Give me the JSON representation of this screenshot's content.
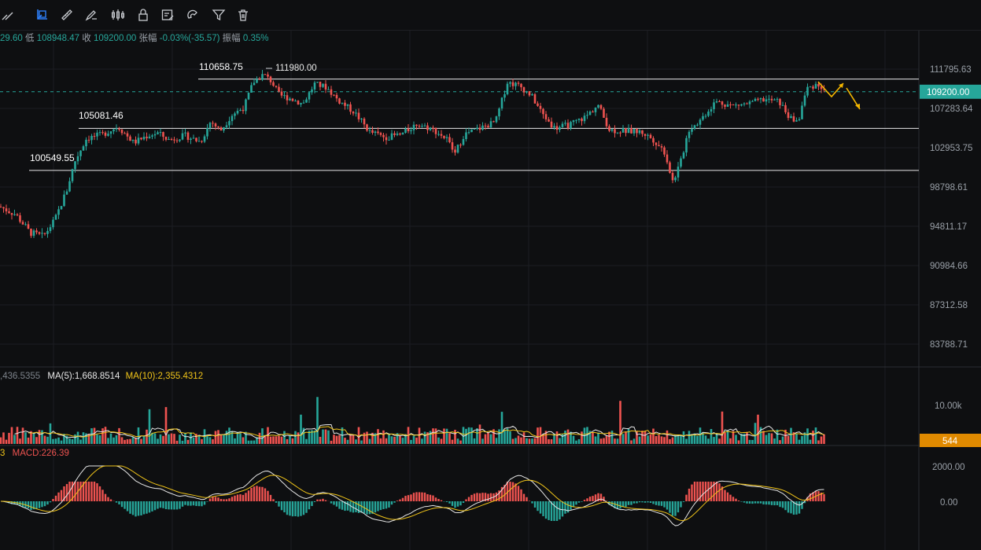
{
  "toolbar": {
    "tools": [
      {
        "icon": "crosshair-icon"
      },
      {
        "icon": "select-rect-icon"
      },
      {
        "icon": "ruler-icon"
      },
      {
        "icon": "brush-icon"
      },
      {
        "icon": "candles-icon"
      },
      {
        "icon": "lock-icon"
      },
      {
        "icon": "note-icon"
      },
      {
        "icon": "magnet-icon"
      },
      {
        "icon": "filter-icon"
      },
      {
        "icon": "trash-icon"
      }
    ],
    "active_color": "#2d7ff9"
  },
  "ohlc_bar": {
    "high_value": "29.60",
    "low_label": "低",
    "low_value": "108948.47",
    "close_label": "收",
    "close_value": "109200.00",
    "change_label": "张幅",
    "change_value": "-0.03%(-35.57)",
    "amplitude_label": "振幅",
    "amplitude_value": "0.35%"
  },
  "price_axis": {
    "ticks": [
      "111795.63",
      "107283.64",
      "102953.75",
      "98798.61",
      "94811.17",
      "90984.66",
      "87312.58",
      "83788.71"
    ],
    "current_price": "109200.00",
    "current_price_color": "#26a69a"
  },
  "annotations": {
    "level_high_label": "110658.75",
    "peak_label": "111980.00",
    "level_mid_label": "105081.46",
    "level_low_label": "100549.55"
  },
  "volume_panel": {
    "prefix": ",436.5355",
    "ma5": "MA(5):1,668.8514",
    "ma10": "MA(10):2,355.4312",
    "axis_tick": "10.00k",
    "current_volume": "544",
    "current_volume_color": "#e08a00"
  },
  "macd_panel": {
    "prefix": "3",
    "macd": "MACD:226.39",
    "axis_ticks": [
      "2000.00",
      "0.00"
    ]
  },
  "colors": {
    "up": "#26a69a",
    "down": "#ef5350",
    "ma5": "#e8e8e8",
    "ma10": "#f0c419",
    "projection": "#f5b700"
  },
  "chart_data": {
    "type": "candlestick",
    "price_levels": [
      110658.75,
      105081.46,
      100549.55
    ],
    "peak": 111980.0,
    "last_close": 109200.0,
    "y_ticks": [
      111795.63,
      107283.64,
      102953.75,
      98798.61,
      94811.17,
      90984.66,
      87312.58,
      83788.71
    ],
    "close_path": [
      [
        0,
        96800
      ],
      [
        20,
        96000
      ],
      [
        38,
        94200
      ],
      [
        55,
        93800
      ],
      [
        70,
        95500
      ],
      [
        85,
        98500
      ],
      [
        95,
        101500
      ],
      [
        110,
        104000
      ],
      [
        130,
        104400
      ],
      [
        150,
        105300
      ],
      [
        170,
        103500
      ],
      [
        185,
        104200
      ],
      [
        200,
        104600
      ],
      [
        215,
        103800
      ],
      [
        235,
        104300
      ],
      [
        255,
        103600
      ],
      [
        268,
        105900
      ],
      [
        280,
        104800
      ],
      [
        295,
        106600
      ],
      [
        310,
        107400
      ],
      [
        322,
        110300
      ],
      [
        335,
        111200
      ],
      [
        345,
        110400
      ],
      [
        355,
        108800
      ],
      [
        370,
        108400
      ],
      [
        385,
        107800
      ],
      [
        400,
        110100
      ],
      [
        415,
        109700
      ],
      [
        430,
        108200
      ],
      [
        450,
        106900
      ],
      [
        470,
        104700
      ],
      [
        490,
        104100
      ],
      [
        510,
        104400
      ],
      [
        530,
        105600
      ],
      [
        550,
        105000
      ],
      [
        568,
        103900
      ],
      [
        578,
        102300
      ],
      [
        590,
        104400
      ],
      [
        610,
        105100
      ],
      [
        630,
        105800
      ],
      [
        645,
        110300
      ],
      [
        660,
        109900
      ],
      [
        675,
        108800
      ],
      [
        690,
        106600
      ],
      [
        705,
        105100
      ],
      [
        725,
        105500
      ],
      [
        745,
        106400
      ],
      [
        760,
        107700
      ],
      [
        775,
        104900
      ],
      [
        795,
        104800
      ],
      [
        815,
        104700
      ],
      [
        830,
        103900
      ],
      [
        845,
        102500
      ],
      [
        855,
        99400
      ],
      [
        865,
        101300
      ],
      [
        875,
        104900
      ],
      [
        890,
        106000
      ],
      [
        910,
        108100
      ],
      [
        930,
        107600
      ],
      [
        950,
        107800
      ],
      [
        970,
        108300
      ],
      [
        990,
        108100
      ],
      [
        1005,
        106100
      ],
      [
        1015,
        105900
      ],
      [
        1025,
        109500
      ],
      [
        1038,
        110100
      ],
      [
        1048,
        109200
      ]
    ],
    "macd_value": 226.39,
    "volume_ma5": 1668.8514,
    "volume_ma10": 2355.4312
  }
}
